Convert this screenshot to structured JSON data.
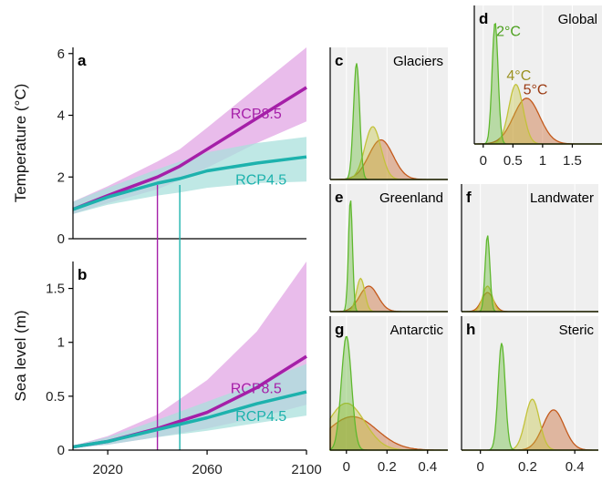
{
  "colors": {
    "rcp85": "#a51fa8",
    "rcp45": "#1db2ad",
    "rcp85_band": "#e2a6e4",
    "rcp45_band": "#a9e0dc",
    "deg2": "#5fb82e",
    "deg4": "#c3c23a",
    "deg5": "#c45a1c",
    "deg2_label": "#4ca01e",
    "deg4_label": "#9a9020",
    "deg5_label": "#9a3a12",
    "panel_bg": "#efefef"
  },
  "chart_data": [
    {
      "id": "a",
      "type": "line",
      "panel_label": "a",
      "ylabel": "Temperature (°C)",
      "yticks": [
        0,
        2,
        4,
        6
      ],
      "ylim": [
        0,
        6.2
      ],
      "xlim": [
        2006,
        2100
      ],
      "x": [
        2006,
        2020,
        2040,
        2049,
        2060,
        2080,
        2100
      ],
      "series": [
        {
          "name": "RCP8.5",
          "values": [
            0.95,
            1.4,
            2.0,
            2.35,
            2.9,
            3.9,
            4.9
          ],
          "lower": [
            0.8,
            1.15,
            1.6,
            1.9,
            2.3,
            3.1,
            3.8
          ],
          "upper": [
            1.2,
            1.7,
            2.5,
            2.9,
            3.6,
            4.9,
            6.2
          ]
        },
        {
          "name": "RCP4.5",
          "values": [
            0.95,
            1.35,
            1.8,
            1.95,
            2.2,
            2.45,
            2.65
          ],
          "lower": [
            0.8,
            1.1,
            1.4,
            1.5,
            1.65,
            1.8,
            1.85
          ],
          "upper": [
            1.2,
            1.65,
            2.25,
            2.5,
            2.8,
            3.1,
            3.3
          ]
        }
      ]
    },
    {
      "id": "b",
      "type": "line",
      "panel_label": "b",
      "ylabel": "Sea level (m)",
      "yticks": [
        0,
        0.5,
        1,
        1.5
      ],
      "ytick_labels": [
        "0",
        "0.5",
        "1",
        "1.5"
      ],
      "ylim": [
        0,
        1.75
      ],
      "xlim": [
        2006,
        2100
      ],
      "xticks": [
        2020,
        2060,
        2100
      ],
      "x": [
        2006,
        2020,
        2040,
        2060,
        2080,
        2100
      ],
      "series": [
        {
          "name": "RCP8.5",
          "values": [
            0.03,
            0.08,
            0.2,
            0.35,
            0.58,
            0.87
          ],
          "lower": [
            0.02,
            0.05,
            0.12,
            0.2,
            0.3,
            0.42
          ],
          "upper": [
            0.04,
            0.13,
            0.33,
            0.65,
            1.1,
            1.75
          ]
        },
        {
          "name": "RCP4.5",
          "values": [
            0.03,
            0.08,
            0.19,
            0.3,
            0.43,
            0.54
          ],
          "lower": [
            0.02,
            0.05,
            0.12,
            0.18,
            0.25,
            0.32
          ],
          "upper": [
            0.04,
            0.12,
            0.28,
            0.45,
            0.62,
            0.8
          ]
        }
      ],
      "markers": [
        {
          "name": "RCP8.5",
          "x": 2040
        },
        {
          "name": "RCP4.5",
          "x": 2049
        }
      ]
    },
    {
      "id": "c",
      "type": "area",
      "panel_label": "c",
      "title": "Glaciers",
      "xlim": [
        -0.08,
        0.5
      ],
      "series": [
        {
          "name": "2°C",
          "mu": 0.05,
          "sigma": 0.015,
          "height": 0.88
        },
        {
          "name": "4°C",
          "mu": 0.13,
          "sigma": 0.04,
          "height": 0.4
        },
        {
          "name": "5°C",
          "mu": 0.17,
          "sigma": 0.06,
          "height": 0.3
        }
      ]
    },
    {
      "id": "d",
      "type": "area",
      "panel_label": "d",
      "title": "Global",
      "xlim": [
        -0.15,
        2.0
      ],
      "xticks": [
        0,
        0.5,
        1,
        1.5
      ],
      "xtick_labels": [
        "0",
        "0.5",
        "1",
        "1.5"
      ],
      "series": [
        {
          "name": "2°C",
          "mu": 0.2,
          "sigma": 0.05,
          "height": 0.88
        },
        {
          "name": "4°C",
          "mu": 0.55,
          "sigma": 0.12,
          "height": 0.43
        },
        {
          "name": "5°C",
          "mu": 0.73,
          "sigma": 0.22,
          "height": 0.33
        }
      ]
    },
    {
      "id": "e",
      "type": "area",
      "panel_label": "e",
      "title": "Greenland",
      "xlim": [
        -0.08,
        0.5
      ],
      "series": [
        {
          "name": "2°C",
          "mu": 0.02,
          "sigma": 0.01,
          "height": 0.88
        },
        {
          "name": "4°C",
          "mu": 0.07,
          "sigma": 0.02,
          "height": 0.26
        },
        {
          "name": "5°C",
          "mu": 0.11,
          "sigma": 0.045,
          "height": 0.2
        }
      ]
    },
    {
      "id": "f",
      "type": "area",
      "panel_label": "f",
      "title": "Landwater",
      "xlim": [
        -0.08,
        0.5
      ],
      "series": [
        {
          "name": "2°C",
          "mu": 0.03,
          "sigma": 0.01,
          "height": 0.6
        },
        {
          "name": "4°C",
          "mu": 0.03,
          "sigma": 0.02,
          "height": 0.2
        },
        {
          "name": "5°C",
          "mu": 0.03,
          "sigma": 0.025,
          "height": 0.15
        }
      ]
    },
    {
      "id": "g",
      "type": "area",
      "panel_label": "g",
      "title": "Antarctic",
      "xlim": [
        -0.08,
        0.5
      ],
      "xticks": [
        0,
        0.2,
        0.4
      ],
      "xtick_labels": [
        "0",
        "0.2",
        "0.4"
      ],
      "series": [
        {
          "name": "2°C",
          "mu": 0.0,
          "sigma": 0.025,
          "height": 0.85
        },
        {
          "name": "4°C",
          "mu": 0.0,
          "sigma": 0.09,
          "height": 0.35
        },
        {
          "name": "5°C",
          "mu": 0.03,
          "sigma": 0.12,
          "height": 0.25
        }
      ]
    },
    {
      "id": "h",
      "type": "area",
      "panel_label": "h",
      "title": "Steric",
      "xlim": [
        -0.08,
        0.5
      ],
      "xticks": [
        0,
        0.2,
        0.4
      ],
      "xtick_labels": [
        "0",
        "0.2",
        "0.4"
      ],
      "series": [
        {
          "name": "2°C",
          "mu": 0.09,
          "sigma": 0.015,
          "height": 0.8
        },
        {
          "name": "4°C",
          "mu": 0.22,
          "sigma": 0.03,
          "height": 0.38
        },
        {
          "name": "5°C",
          "mu": 0.31,
          "sigma": 0.045,
          "height": 0.3
        }
      ]
    }
  ]
}
